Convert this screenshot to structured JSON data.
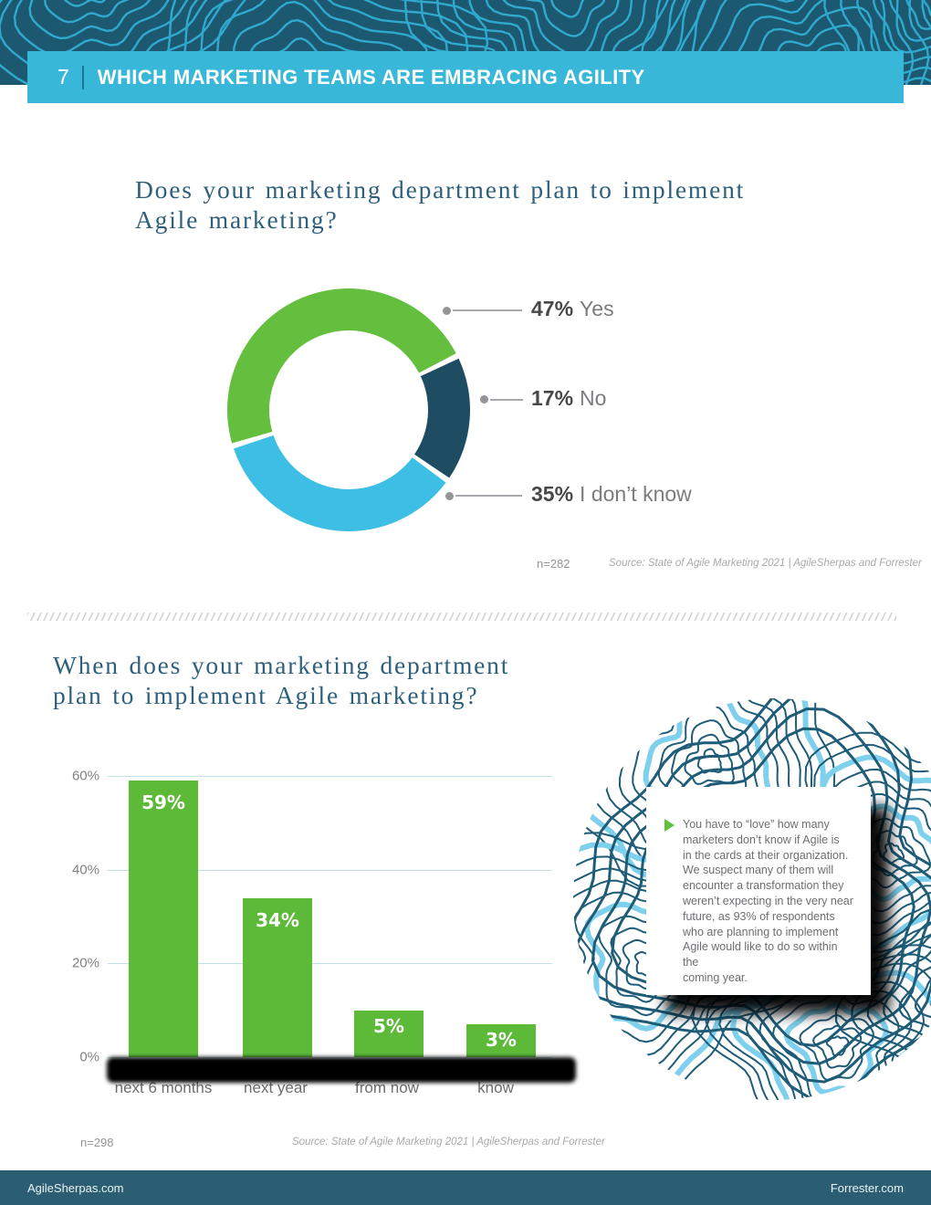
{
  "page": {
    "number": "7",
    "header_title": "WHICH MARKETING TEAMS ARE EMBRACING AGILITY",
    "footer_left": "AgileSherpas.com",
    "footer_right": "Forrester.com"
  },
  "section1": {
    "title_line1": "Does your marketing department plan to implement",
    "title_line2": "Agile marketing?"
  },
  "section2": {
    "title_line1": "When does your marketing department",
    "title_line2": "plan to implement Agile marketing?"
  },
  "callout": {
    "text": "You have to “love” how many\nmarketers don’t know if Agile is\nin the cards at their organization.\nWe suspect many of them will\nencounter a transformation they\nweren’t expecting in the very near\nfuture, as 93% of respondents\nwho are planning to implement\nAgile would like to do so within the\ncoming year."
  },
  "colors": {
    "banner_bg": "#1d5871",
    "banner_contour": "#2fa9cd",
    "titlebar_bg": "#39b7d8",
    "footer_bg": "#2b5e72",
    "question_title": "#2e5f7c",
    "donut_green": "#65bf3f",
    "donut_navy": "#1e4d63",
    "donut_lightblue": "#3dbee4",
    "bar_green": "#5cba38",
    "topo_dark": "#1e5c78",
    "topo_light": "#7fd0ec"
  },
  "chart_data": [
    {
      "type": "pie",
      "subtype": "donut",
      "title": "Does your marketing department plan to implement Agile marketing?",
      "labels": [
        "Yes",
        "No",
        "I don’t know"
      ],
      "values": [
        47,
        17,
        35
      ],
      "value_labels": [
        "47%",
        "17%",
        "35%"
      ],
      "colors": [
        "#65bf3f",
        "#1e4d63",
        "#3dbee4"
      ],
      "start_angle_deg": -107.3,
      "legend_position": "right",
      "n": "n=282",
      "source": "Source: State of Agile Marketing 2021 | AgileSherpas and Forrester"
    },
    {
      "type": "bar",
      "title": "When does your marketing department plan to implement Agile marketing?",
      "categories": [
        "next 6 months",
        "next year",
        "from now",
        "know"
      ],
      "values": [
        59,
        34,
        5,
        3
      ],
      "value_labels": [
        "59%",
        "34%",
        "5%",
        "3%"
      ],
      "display_heights_pct": [
        59,
        34,
        10,
        7
      ],
      "ylim": [
        0,
        60
      ],
      "yticks": [
        "60%",
        "40%",
        "20%",
        "0%"
      ],
      "bar_color": "#5cba38",
      "grid": true,
      "legend_position": "none",
      "n": "n=298",
      "source": "Source: State of Agile Marketing 2021 | AgileSherpas and Forrester",
      "note": "first line of each x-axis label hidden by black redaction bar"
    }
  ]
}
